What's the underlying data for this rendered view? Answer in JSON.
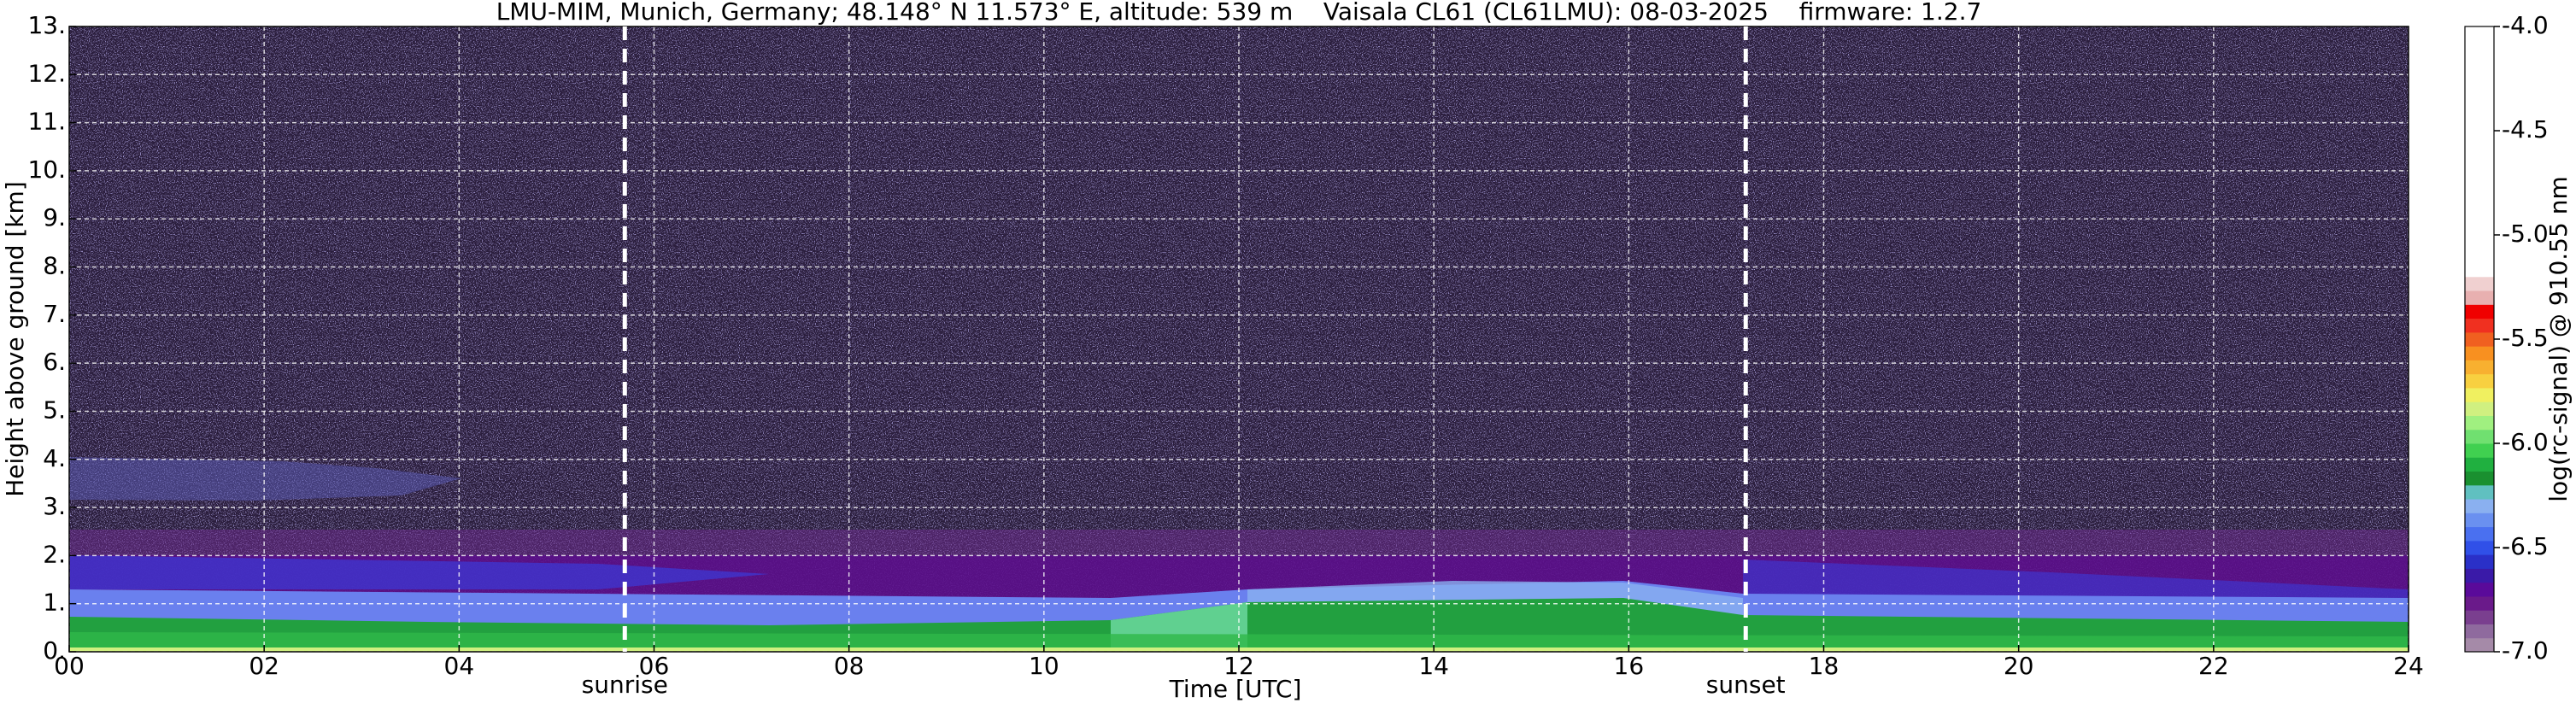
{
  "chart_data": {
    "type": "heatmap",
    "title": "LMU-MIM, Munich, Germany; 48.148° N 11.573° E, altitude: 539 m    Vaisala CL61 (CL61LMU): 08-03-2025    firmware: 1.2.7",
    "xlabel": "Time [UTC]",
    "ylabel": "Height above ground [km]",
    "xlim": [
      0,
      24
    ],
    "xticks": [
      {
        "value": 0,
        "label": "00"
      },
      {
        "value": 2,
        "label": "02"
      },
      {
        "value": 4,
        "label": "04"
      },
      {
        "value": 6,
        "label": "06"
      },
      {
        "value": 8,
        "label": "08"
      },
      {
        "value": 10,
        "label": "10"
      },
      {
        "value": 12,
        "label": "12"
      },
      {
        "value": 14,
        "label": "14"
      },
      {
        "value": 16,
        "label": "16"
      },
      {
        "value": 18,
        "label": "18"
      },
      {
        "value": 20,
        "label": "20"
      },
      {
        "value": 22,
        "label": "22"
      },
      {
        "value": 24,
        "label": "24"
      }
    ],
    "ylim": [
      0,
      13
    ],
    "yticks": [
      {
        "value": 0,
        "label": "0."
      },
      {
        "value": 1,
        "label": "1."
      },
      {
        "value": 2,
        "label": "2."
      },
      {
        "value": 3,
        "label": "3."
      },
      {
        "value": 4,
        "label": "4."
      },
      {
        "value": 5,
        "label": "5."
      },
      {
        "value": 6,
        "label": "6."
      },
      {
        "value": 7,
        "label": "7."
      },
      {
        "value": 8,
        "label": "8."
      },
      {
        "value": 9,
        "label": "9."
      },
      {
        "value": 10,
        "label": "10."
      },
      {
        "value": 11,
        "label": "11."
      },
      {
        "value": 12,
        "label": "12."
      },
      {
        "value": 13,
        "label": "13."
      }
    ],
    "grid": true,
    "annotations": [
      {
        "text": "sunrise",
        "x": 5.7
      },
      {
        "text": "sunset",
        "x": 17.2
      }
    ],
    "colorbar": {
      "label": "log(rc-signal) @ 910.55 nm",
      "lim": [
        -7,
        -4
      ],
      "ticks": [
        {
          "value": -7,
          "label": "-7.0"
        },
        {
          "value": -6.5,
          "label": "-6.5"
        },
        {
          "value": -6,
          "label": "-6.0"
        },
        {
          "value": -5.5,
          "label": "-5.5"
        },
        {
          "value": -5,
          "label": "-5.0"
        },
        {
          "value": -4.5,
          "label": "-4.5"
        },
        {
          "value": -4,
          "label": "-4.0"
        }
      ],
      "colors": [
        "#a58aa8",
        "#8f6a9e",
        "#7a3f8f",
        "#6a1a8a",
        "#5a0a9a",
        "#3a1aa8",
        "#2a30c8",
        "#3050e8",
        "#4a70f0",
        "#6a90f0",
        "#8ab0f0",
        "#60c0c0",
        "#1a9030",
        "#20b040",
        "#40d050",
        "#70e070",
        "#a0f080",
        "#d0f080",
        "#f0f060",
        "#f8d040",
        "#f8b030",
        "#f89020",
        "#f06020",
        "#f03020",
        "#f00000",
        "#e8b0b0",
        "#f0d0d0",
        "#ffffff",
        "#ffffff",
        "#ffffff",
        "#ffffff",
        "#ffffff",
        "#ffffff",
        "#ffffff",
        "#ffffff",
        "#ffffff",
        "#ffffff",
        "#ffffff",
        "#ffffff",
        "#ffffff",
        "#ffffff",
        "#ffffff",
        "#ffffff",
        "#ffffff",
        "#ffffff"
      ]
    }
  }
}
